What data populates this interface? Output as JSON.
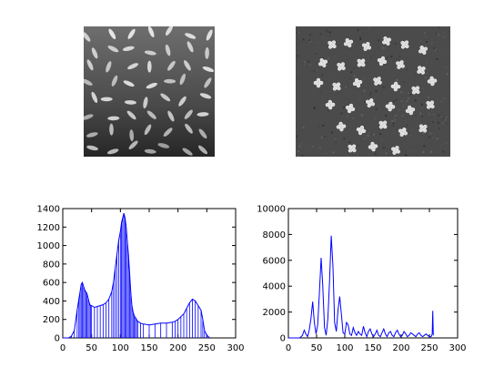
{
  "images": [
    {
      "content": "grayscale photo of rice grains on dark background"
    },
    {
      "content": "grayscale micrograph of chromosomes"
    }
  ],
  "colors": {
    "series": "#0000ff",
    "axes": "#000000",
    "background": "#ffffff"
  },
  "chart_data": [
    {
      "type": "line",
      "title": "",
      "xlabel": "",
      "ylabel": "",
      "xlim": [
        0,
        300
      ],
      "ylim": [
        0,
        1400
      ],
      "xticks": [
        0,
        50,
        100,
        150,
        200,
        250,
        300
      ],
      "yticks": [
        0,
        200,
        400,
        600,
        800,
        1000,
        1200,
        1400
      ],
      "grid": false,
      "series": [
        {
          "x": [
            0,
            10,
            15,
            20,
            25,
            28,
            30,
            32,
            34,
            36,
            38,
            40,
            42,
            44,
            46,
            48,
            50,
            55,
            60,
            65,
            70,
            75,
            80,
            85,
            88,
            91,
            94,
            97,
            100,
            102,
            104,
            106,
            108,
            110,
            112,
            114,
            116,
            118,
            120,
            122,
            124,
            126,
            128,
            130,
            135,
            140,
            150,
            160,
            170,
            180,
            190,
            195,
            200,
            205,
            210,
            215,
            220,
            225,
            230,
            235,
            240,
            243,
            246,
            250,
            255
          ],
          "y": [
            0,
            0,
            20,
            80,
            300,
            420,
            500,
            580,
            600,
            560,
            520,
            500,
            480,
            430,
            380,
            350,
            350,
            330,
            340,
            350,
            360,
            380,
            420,
            500,
            600,
            750,
            900,
            1050,
            1150,
            1250,
            1300,
            1350,
            1300,
            1200,
            1050,
            900,
            700,
            500,
            350,
            280,
            240,
            220,
            200,
            180,
            160,
            150,
            140,
            150,
            160,
            160,
            170,
            180,
            200,
            230,
            260,
            320,
            380,
            420,
            400,
            350,
            300,
            200,
            80,
            30,
            0
          ]
        }
      ]
    },
    {
      "type": "line",
      "title": "",
      "xlabel": "",
      "ylabel": "",
      "xlim": [
        0,
        300
      ],
      "ylim": [
        0,
        10000
      ],
      "xticks": [
        0,
        50,
        100,
        150,
        200,
        250,
        300
      ],
      "yticks": [
        0,
        2000,
        4000,
        6000,
        8000,
        10000
      ],
      "grid": false,
      "series": [
        {
          "x": [
            0,
            20,
            25,
            28,
            31,
            34,
            37,
            40,
            43,
            46,
            49,
            52,
            55,
            58,
            61,
            64,
            67,
            70,
            73,
            76,
            79,
            82,
            85,
            88,
            91,
            94,
            97,
            100,
            103,
            106,
            109,
            112,
            115,
            118,
            121,
            124,
            127,
            130,
            133,
            136,
            139,
            142,
            145,
            148,
            151,
            154,
            157,
            160,
            163,
            166,
            169,
            172,
            175,
            178,
            181,
            184,
            187,
            190,
            193,
            196,
            199,
            202,
            205,
            208,
            211,
            214,
            217,
            220,
            223,
            226,
            229,
            232,
            235,
            238,
            241,
            244,
            247,
            250,
            253,
            255,
            256,
            257
          ],
          "y": [
            0,
            0,
            200,
            600,
            300,
            100,
            600,
            1500,
            2800,
            1200,
            300,
            1000,
            3500,
            6200,
            4000,
            800,
            200,
            1500,
            4500,
            7900,
            5500,
            1200,
            500,
            2200,
            3200,
            1800,
            400,
            300,
            1200,
            1000,
            300,
            200,
            800,
            400,
            200,
            500,
            300,
            200,
            900,
            400,
            100,
            500,
            700,
            300,
            100,
            300,
            600,
            200,
            100,
            400,
            700,
            300,
            100,
            400,
            500,
            200,
            100,
            400,
            600,
            300,
            100,
            200,
            500,
            300,
            100,
            200,
            400,
            300,
            200,
            100,
            300,
            400,
            200,
            100,
            200,
            300,
            200,
            100,
            100,
            300,
            2100,
            200
          ]
        }
      ]
    }
  ]
}
